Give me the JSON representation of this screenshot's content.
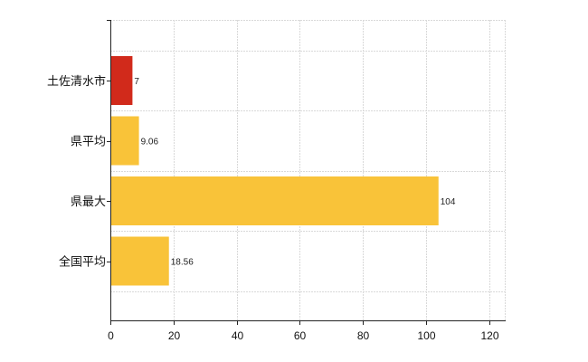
{
  "chart_data": {
    "type": "bar",
    "orientation": "horizontal",
    "categories": [
      "土佐清水市",
      "県平均",
      "県最大",
      "全国平均"
    ],
    "values": [
      7,
      9.06,
      104,
      18.56
    ],
    "data_labels": [
      "7",
      "9.06",
      "104",
      "18.56"
    ],
    "bar_colors": [
      "#d12a1b",
      "#f9c339",
      "#f9c339",
      "#f9c339"
    ],
    "x_ticks": [
      0,
      20,
      40,
      60,
      80,
      100,
      120
    ],
    "xlim": [
      0,
      125
    ],
    "grid": true,
    "legend": "none"
  }
}
